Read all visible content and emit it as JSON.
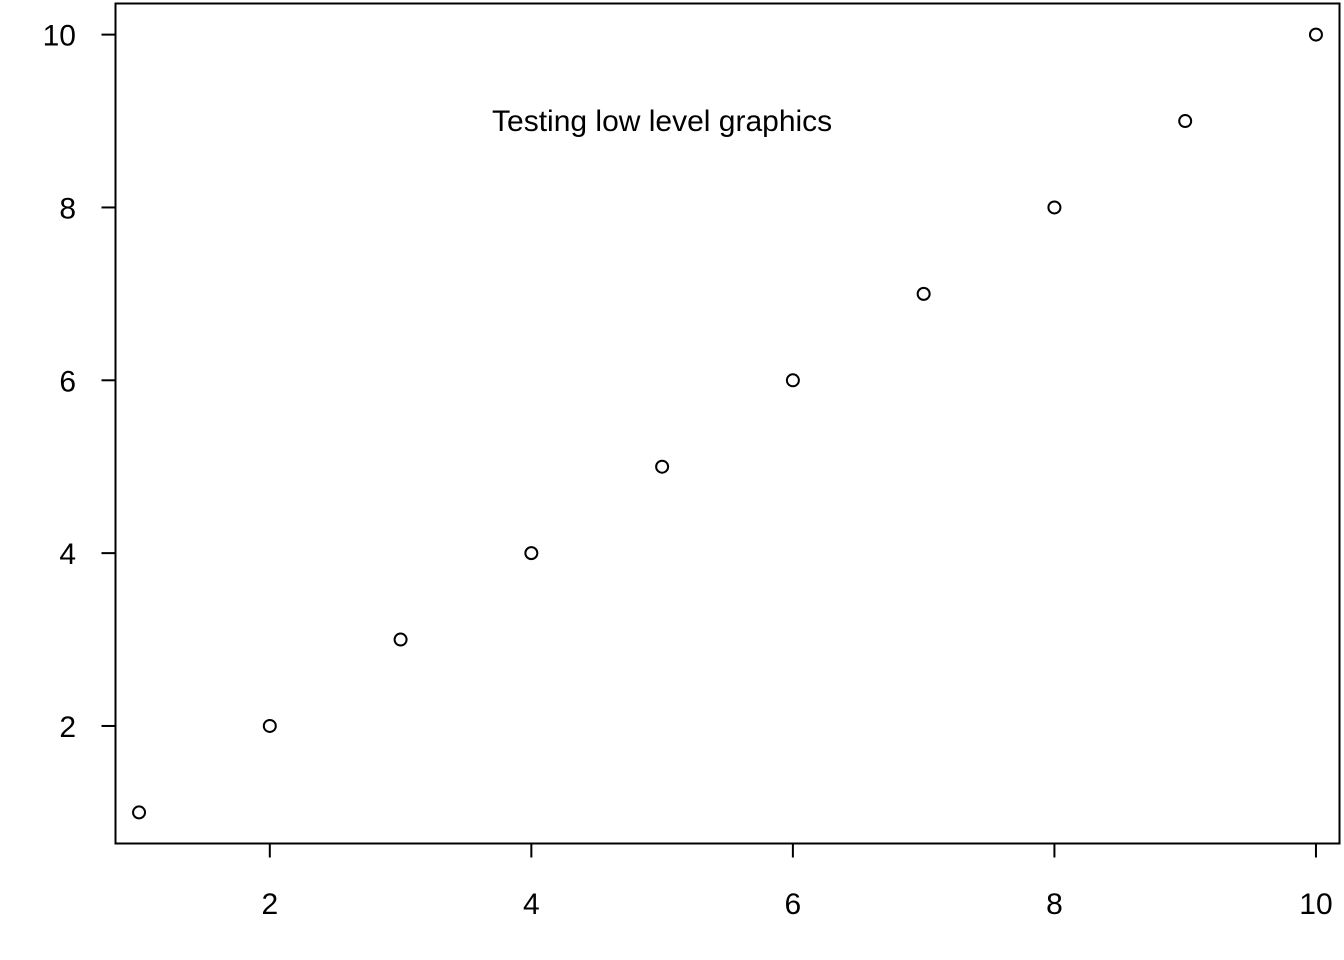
{
  "chart_data": {
    "type": "scatter",
    "x": [
      1,
      2,
      3,
      4,
      5,
      6,
      7,
      8,
      9,
      10
    ],
    "y": [
      1,
      2,
      3,
      4,
      5,
      6,
      7,
      8,
      9,
      10
    ],
    "xlim": [
      0.82,
      10.18
    ],
    "ylim": [
      0.64,
      10.36
    ],
    "x_ticks": [
      2,
      4,
      6,
      8,
      10
    ],
    "y_ticks": [
      2,
      4,
      6,
      8,
      10
    ],
    "x_tick_labels": [
      "2",
      "4",
      "6",
      "8",
      "10"
    ],
    "y_tick_labels": [
      "2",
      "4",
      "6",
      "8",
      "10"
    ],
    "title": "",
    "xlabel": "",
    "ylabel": "",
    "grid": false,
    "marker": "open-circle",
    "annotations": [
      {
        "text": "Testing low level graphics",
        "x": 5,
        "y": 9
      }
    ],
    "colors": {
      "points": "#000000",
      "axes": "#000000",
      "background": "#ffffff"
    }
  }
}
